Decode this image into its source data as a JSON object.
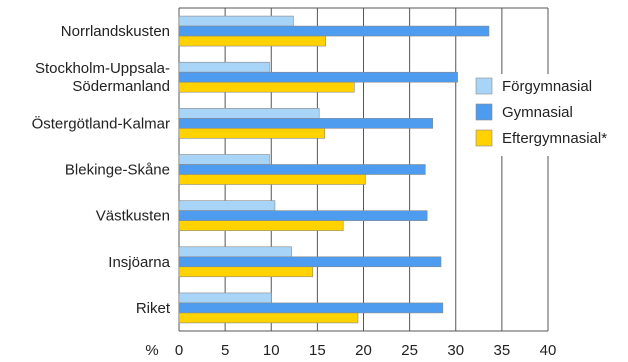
{
  "chart_data": {
    "type": "bar",
    "orientation": "horizontal",
    "categories": [
      "Norrlandskusten",
      "Stockholm-Uppsala-Södermanland",
      "Östergötland-Kalmar",
      "Blekinge-Skåne",
      "Västkusten",
      "Insjöarna",
      "Riket"
    ],
    "category_lines": [
      [
        "Norrlandskusten"
      ],
      [
        "Stockholm-Uppsala-",
        "Södermanland"
      ],
      [
        "Östergötland-Kalmar"
      ],
      [
        "Blekinge-Skåne"
      ],
      [
        "Västkusten"
      ],
      [
        "Insjöarna"
      ],
      [
        "Riket"
      ]
    ],
    "series": [
      {
        "name": "Förgymnasial",
        "color": "#a8d4f8",
        "values": [
          12.4,
          9.8,
          15.2,
          9.8,
          10.4,
          12.2,
          10.0
        ]
      },
      {
        "name": "Gymnasial",
        "color": "#4d9cf0",
        "values": [
          33.6,
          30.2,
          27.5,
          26.7,
          26.9,
          28.4,
          28.6
        ]
      },
      {
        "name": "Eftergymnasial*",
        "color": "#ffd200",
        "values": [
          15.9,
          19.0,
          15.8,
          20.2,
          17.8,
          14.5,
          19.4
        ]
      }
    ],
    "x_unit": "%",
    "xlim": [
      0,
      40
    ],
    "xticks": [
      0,
      5,
      10,
      15,
      20,
      25,
      30,
      35,
      40
    ],
    "grid": "vertical",
    "legend_position": "right"
  }
}
